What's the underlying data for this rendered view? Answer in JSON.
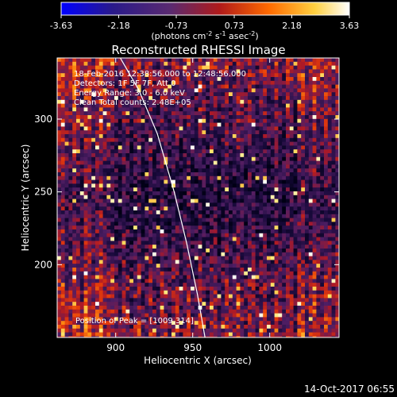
{
  "chart_data": {
    "type": "heatmap",
    "title": "Reconstructed RHESSI Image",
    "xlabel": "Heliocentric X (arcsec)",
    "ylabel": "Heliocentric Y (arcsec)",
    "xlim": [
      862,
      1045
    ],
    "ylim": [
      150,
      342
    ],
    "x_ticks": [
      900,
      950,
      1000
    ],
    "y_ticks": [
      200,
      250,
      300
    ],
    "colorbar": {
      "min": -3.63,
      "max": 3.63,
      "ticks": [
        "-3.63",
        "-2.18",
        "-0.73",
        "0.73",
        "2.18",
        "3.63"
      ],
      "units_prefix": "(photons cm",
      "units_exp1": "-2",
      "units_mid": " s",
      "units_exp2": "-1",
      "units_mid2": " asec",
      "units_exp3": "-2",
      "units_suffix": ")",
      "colormap": [
        "#0000ff",
        "#3a1a6a",
        "#7a3060",
        "#d01818",
        "#ff8c00",
        "#ffe060",
        "#ffffff"
      ]
    },
    "annotations": [
      "18-Feb-2016 12:38:56.000 to 12:48:56.000",
      "Detectors: 1F 5F 7F, Att 0",
      "Energy Range: 3.0 - 6.0 keV",
      "Clean    Total counts: 2.48E+05"
    ],
    "peak_label": "Position of Peak = [1009,314]",
    "peak": [
      1009,
      314
    ],
    "limb_curve": [
      [
        903,
        342
      ],
      [
        915,
        320
      ],
      [
        927,
        290
      ],
      [
        938,
        250
      ],
      [
        946,
        215
      ],
      [
        953,
        180
      ],
      [
        958,
        150
      ]
    ],
    "grid": false
  },
  "footer": {
    "timestamp": "14-Oct-2017 06:55"
  }
}
